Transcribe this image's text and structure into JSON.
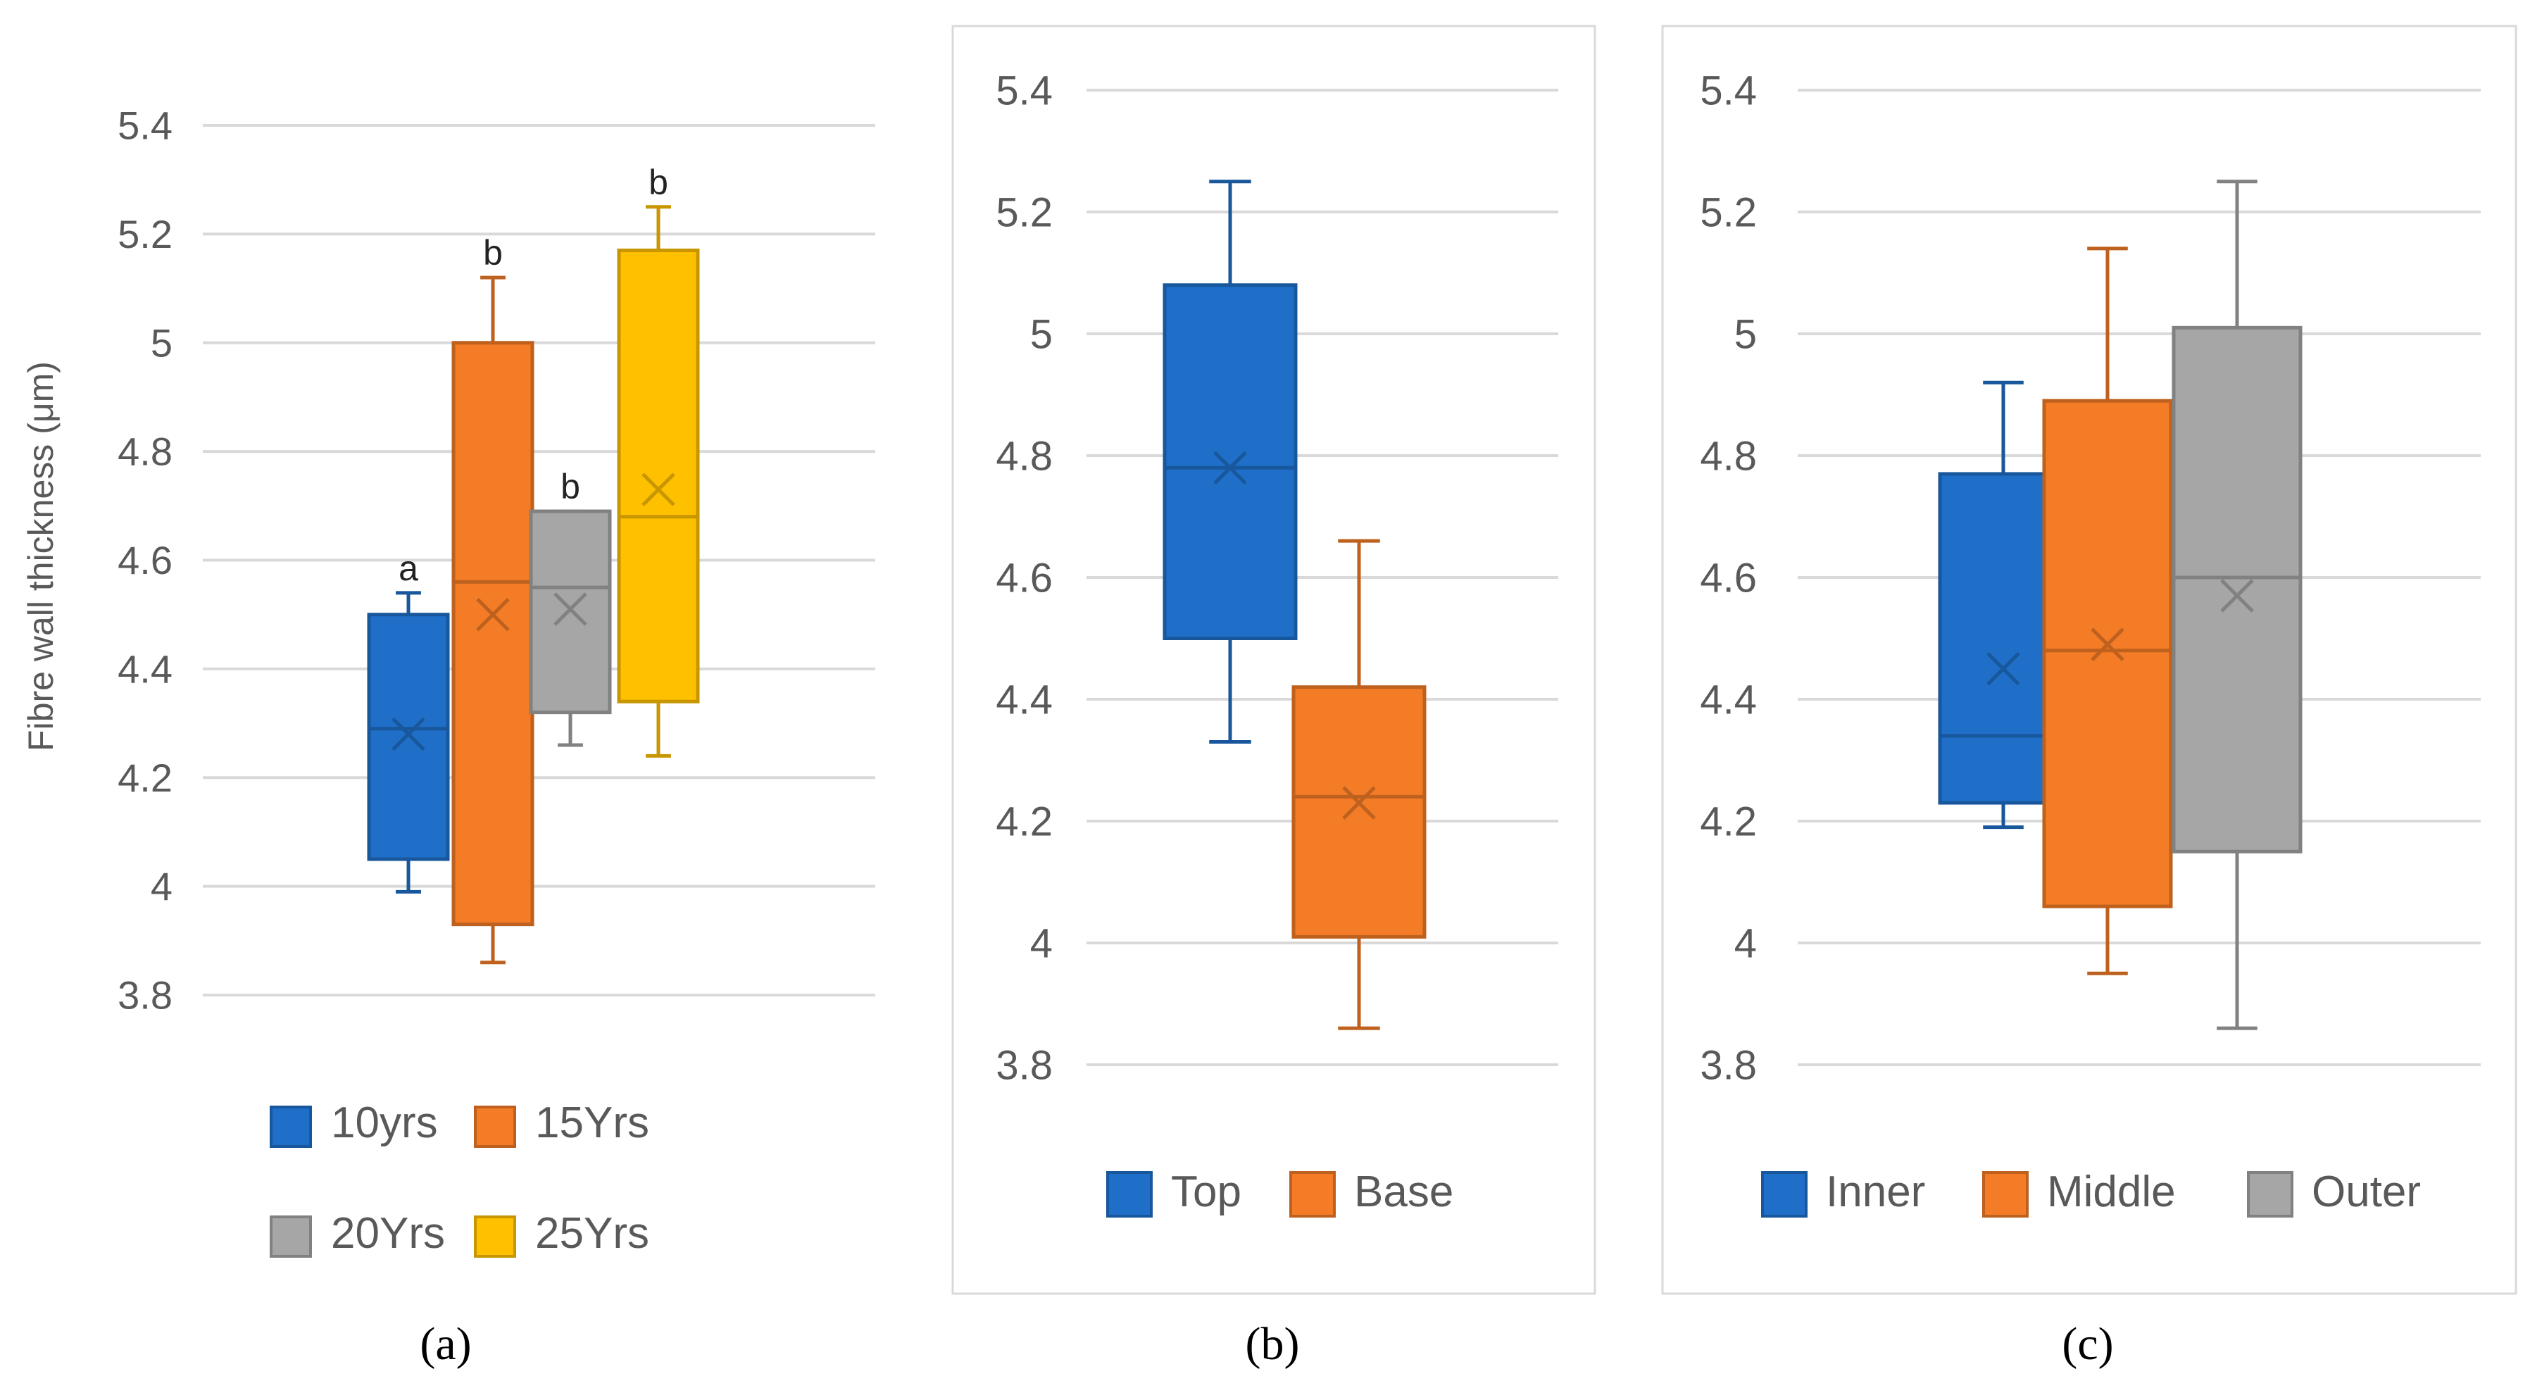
{
  "colors": {
    "blue": "#1f6fc8",
    "orange": "#f47c26",
    "gray": "#a6a6a6",
    "yellow": "#ffc000",
    "grid": "#d9d9d9",
    "tick_text": "#595959"
  },
  "chart_data": [
    {
      "type": "box",
      "id": "a",
      "caption": "(a)",
      "ylabel": "Fibre wall thickness (μm)",
      "ylim": [
        3.8,
        5.4
      ],
      "yticks": [
        "3.8",
        "4",
        "4.2",
        "4.4",
        "4.6",
        "4.8",
        "5",
        "5.2",
        "5.4"
      ],
      "legend_position": "bottom",
      "series": [
        {
          "name": "10yrs",
          "color": "#1f6fc8",
          "min": 3.99,
          "q1": 4.05,
          "median": 4.29,
          "q3": 4.5,
          "max": 4.54,
          "mean": 4.28,
          "letter": "a"
        },
        {
          "name": "15Yrs",
          "color": "#f47c26",
          "min": 3.86,
          "q1": 3.93,
          "median": 4.56,
          "q3": 5.0,
          "max": 5.12,
          "mean": 4.5,
          "letter": "b"
        },
        {
          "name": "20Yrs",
          "color": "#a6a6a6",
          "min": 4.26,
          "q1": 4.32,
          "median": 4.55,
          "q3": 4.69,
          "max": 4.69,
          "mean": 4.51,
          "letter": "b"
        },
        {
          "name": "25Yrs",
          "color": "#ffc000",
          "min": 4.24,
          "q1": 4.34,
          "median": 4.68,
          "q3": 5.17,
          "max": 5.25,
          "mean": 4.73,
          "letter": "b"
        }
      ]
    },
    {
      "type": "box",
      "id": "b",
      "caption": "(b)",
      "ylim": [
        3.8,
        5.4
      ],
      "yticks": [
        "3.8",
        "4",
        "4.2",
        "4.4",
        "4.6",
        "4.8",
        "5",
        "5.2",
        "5.4"
      ],
      "legend_position": "bottom",
      "series": [
        {
          "name": "Top",
          "color": "#1f6fc8",
          "min": 4.33,
          "q1": 4.5,
          "median": 4.78,
          "q3": 5.08,
          "max": 5.25,
          "mean": 4.78
        },
        {
          "name": "Base",
          "color": "#f47c26",
          "min": 3.86,
          "q1": 4.01,
          "median": 4.24,
          "q3": 4.42,
          "max": 4.66,
          "mean": 4.23
        }
      ]
    },
    {
      "type": "box",
      "id": "c",
      "caption": "(c)",
      "ylim": [
        3.8,
        5.4
      ],
      "yticks": [
        "3.8",
        "4",
        "4.2",
        "4.4",
        "4.6",
        "4.8",
        "5",
        "5.2",
        "5.4"
      ],
      "legend_position": "bottom",
      "series": [
        {
          "name": "Inner",
          "color": "#1f6fc8",
          "min": 4.19,
          "q1": 4.23,
          "median": 4.34,
          "q3": 4.77,
          "max": 4.92,
          "mean": 4.45
        },
        {
          "name": "Middle",
          "color": "#f47c26",
          "min": 3.95,
          "q1": 4.06,
          "median": 4.48,
          "q3": 4.89,
          "max": 5.14,
          "mean": 4.49
        },
        {
          "name": "Outer",
          "color": "#a6a6a6",
          "min": 3.86,
          "q1": 4.15,
          "median": 4.6,
          "q3": 5.01,
          "max": 5.25,
          "mean": 4.57
        }
      ]
    }
  ]
}
